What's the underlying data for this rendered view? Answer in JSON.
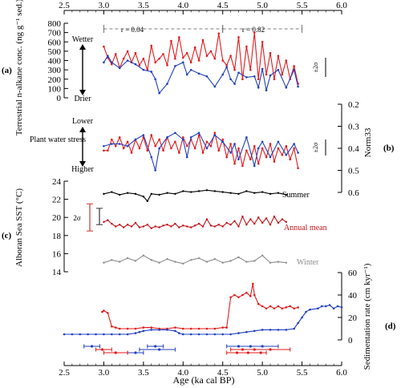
{
  "chart_data": {
    "type": "line",
    "x_axis": {
      "label": "Age (ka cal BP)",
      "range": [
        2.5,
        6.0
      ],
      "ticks": [
        "2.5",
        "3.0",
        "3.5",
        "4.0",
        "4.5",
        "5.0",
        "5.5",
        "6.0"
      ]
    },
    "correlation_labels": [
      "r = 0.04",
      "r = 0.82"
    ],
    "correlation_ranges": [
      [
        3.0,
        4.5
      ],
      [
        4.5,
        5.5
      ]
    ],
    "panels": {
      "a": {
        "label": "(a)",
        "ylabel": "Terrestrial n-alkane conc. (ng g⁻¹ sed.)",
        "ylim": [
          0,
          800
        ],
        "ticks": [
          "0",
          "100",
          "200",
          "300",
          "400",
          "500",
          "600",
          "700",
          "800"
        ],
        "arrow_top": "Wetter",
        "arrow_bottom": "Drier",
        "error_label": "±2σ",
        "series": [
          {
            "color": "#e41a1c",
            "x": [
              3.0,
              3.05,
              3.1,
              3.15,
              3.2,
              3.25,
              3.3,
              3.35,
              3.4,
              3.45,
              3.5,
              3.55,
              3.6,
              3.65,
              3.7,
              3.75,
              3.8,
              3.85,
              3.9,
              3.95,
              4.0,
              4.05,
              4.1,
              4.15,
              4.2,
              4.25,
              4.3,
              4.35,
              4.4,
              4.45,
              4.5,
              4.55,
              4.6,
              4.65,
              4.7,
              4.75,
              4.8,
              4.85,
              4.9,
              4.95,
              5.0,
              5.05,
              5.1,
              5.15,
              5.2,
              5.25,
              5.3,
              5.35,
              5.4,
              5.45
            ],
            "y": [
              550,
              430,
              360,
              470,
              320,
              420,
              500,
              380,
              480,
              350,
              420,
              300,
              560,
              380,
              420,
              470,
              350,
              610,
              420,
              650,
              430,
              480,
              380,
              540,
              400,
              620,
              450,
              500,
              420,
              690,
              400,
              350,
              450,
              300,
              650,
              200,
              550,
              300,
              700,
              200,
              600,
              250,
              480,
              200,
              450,
              250,
              400,
              200,
              340,
              150
            ]
          },
          {
            "color": "#1f3fbf",
            "x": [
              3.0,
              3.05,
              3.1,
              3.2,
              3.3,
              3.4,
              3.5,
              3.6,
              3.65,
              3.7,
              3.8,
              3.9,
              4.0,
              4.05,
              4.1,
              4.2,
              4.3,
              4.4,
              4.5,
              4.55,
              4.6,
              4.65,
              4.7,
              4.8,
              4.9,
              4.95,
              5.0,
              5.05,
              5.1,
              5.2,
              5.3,
              5.4,
              5.45
            ],
            "y": [
              380,
              450,
              380,
              320,
              400,
              360,
              300,
              280,
              200,
              50,
              150,
              340,
              380,
              250,
              300,
              260,
              230,
              120,
              250,
              330,
              200,
              150,
              270,
              220,
              230,
              110,
              310,
              80,
              240,
              300,
              110,
              300,
              120
            ]
          }
        ]
      },
      "b": {
        "label": "(b)",
        "ylabel": "Norm33",
        "ylim": [
          0.6,
          0.2
        ],
        "ticks": [
          "0.2",
          "0.3",
          "0.4",
          "0.5",
          "0.6"
        ],
        "arrow_top": "Lower",
        "arrow_middle": "Plant water stress",
        "arrow_bottom": "Higher",
        "error_label": "±2σ",
        "series": [
          {
            "color": "#e41a1c",
            "x": [
              3.0,
              3.05,
              3.1,
              3.15,
              3.2,
              3.25,
              3.3,
              3.35,
              3.4,
              3.45,
              3.5,
              3.55,
              3.6,
              3.65,
              3.7,
              3.75,
              3.8,
              3.85,
              3.9,
              3.95,
              4.0,
              4.05,
              4.1,
              4.15,
              4.2,
              4.25,
              4.3,
              4.35,
              4.4,
              4.45,
              4.5,
              4.55,
              4.6,
              4.65,
              4.7,
              4.75,
              4.8,
              4.85,
              4.9,
              4.95,
              5.0,
              5.05,
              5.1,
              5.15,
              5.2,
              5.25,
              5.3,
              5.35,
              5.4,
              5.45
            ],
            "y": [
              0.41,
              0.41,
              0.36,
              0.39,
              0.35,
              0.4,
              0.37,
              0.42,
              0.36,
              0.4,
              0.35,
              0.41,
              0.34,
              0.39,
              0.36,
              0.41,
              0.35,
              0.4,
              0.37,
              0.42,
              0.35,
              0.39,
              0.36,
              0.4,
              0.34,
              0.42,
              0.37,
              0.39,
              0.33,
              0.41,
              0.36,
              0.44,
              0.38,
              0.47,
              0.4,
              0.48,
              0.41,
              0.45,
              0.39,
              0.47,
              0.4,
              0.44,
              0.38,
              0.46,
              0.4,
              0.43,
              0.39,
              0.45,
              0.4,
              0.49
            ]
          },
          {
            "color": "#1f3fbf",
            "x": [
              3.0,
              3.1,
              3.2,
              3.3,
              3.4,
              3.5,
              3.6,
              3.65,
              3.7,
              3.8,
              3.9,
              4.0,
              4.05,
              4.1,
              4.2,
              4.3,
              4.4,
              4.5,
              4.6,
              4.65,
              4.7,
              4.8,
              4.9,
              4.95,
              5.0,
              5.1,
              5.2,
              5.3,
              5.4,
              5.45
            ],
            "y": [
              0.39,
              0.38,
              0.38,
              0.39,
              0.36,
              0.34,
              0.44,
              0.5,
              0.4,
              0.35,
              0.33,
              0.36,
              0.44,
              0.35,
              0.33,
              0.4,
              0.34,
              0.37,
              0.42,
              0.38,
              0.45,
              0.35,
              0.48,
              0.4,
              0.37,
              0.44,
              0.37,
              0.43,
              0.38,
              0.42
            ]
          }
        ]
      },
      "c": {
        "label": "(c)",
        "ylabel": "Alboran Sea SST (°C)",
        "ylim": [
          14,
          24
        ],
        "ticks": [
          "14",
          "16",
          "18",
          "20",
          "22",
          "24"
        ],
        "error_label": "2σ",
        "series": [
          {
            "name": "Summer",
            "color": "#000000",
            "x": [
              3.0,
              3.1,
              3.2,
              3.3,
              3.4,
              3.5,
              3.55,
              3.6,
              3.7,
              3.8,
              3.9,
              4.0,
              4.1,
              4.2,
              4.3,
              4.4,
              4.5,
              4.6,
              4.7,
              4.8,
              4.9,
              5.0,
              5.1,
              5.2,
              5.3
            ],
            "y": [
              22.6,
              22.8,
              22.5,
              22.7,
              22.6,
              22.3,
              21.8,
              22.6,
              22.5,
              22.7,
              22.6,
              22.9,
              22.8,
              22.9,
              23.0,
              22.9,
              22.8,
              22.7,
              22.6,
              22.9,
              22.7,
              22.8,
              22.6,
              22.7,
              22.5
            ]
          },
          {
            "name": "Annual mean",
            "color": "#c0141a",
            "x": [
              3.0,
              3.05,
              3.1,
              3.15,
              3.2,
              3.25,
              3.3,
              3.35,
              3.4,
              3.45,
              3.5,
              3.55,
              3.6,
              3.65,
              3.7,
              3.75,
              3.8,
              3.85,
              3.9,
              3.95,
              4.0,
              4.05,
              4.1,
              4.15,
              4.2,
              4.25,
              4.3,
              4.35,
              4.4,
              4.45,
              4.5,
              4.55,
              4.6,
              4.65,
              4.7,
              4.75,
              4.8,
              4.85,
              4.9,
              4.95,
              5.0,
              5.05,
              5.1,
              5.15,
              5.2,
              5.25,
              5.3
            ],
            "y": [
              19.5,
              19.7,
              19.3,
              19.0,
              19.2,
              18.9,
              19.2,
              19.0,
              19.4,
              18.9,
              19.0,
              19.2,
              18.8,
              19.0,
              18.9,
              19.1,
              19.2,
              19.0,
              19.3,
              18.9,
              19.1,
              19.0,
              18.9,
              19.1,
              19.3,
              19.0,
              19.8,
              19.1,
              19.0,
              19.2,
              19.0,
              19.4,
              19.2,
              19.6,
              19.0,
              20.1,
              19.2,
              19.8,
              19.3,
              20.0,
              19.4,
              19.9,
              19.2,
              20.1,
              19.4,
              19.8,
              19.5
            ]
          },
          {
            "name": "Winter",
            "color": "#8c8c8c",
            "x": [
              3.0,
              3.1,
              3.2,
              3.3,
              3.4,
              3.5,
              3.6,
              3.7,
              3.8,
              3.9,
              4.0,
              4.1,
              4.2,
              4.3,
              4.4,
              4.5,
              4.6,
              4.7,
              4.8,
              4.9,
              5.0,
              5.1,
              5.2,
              5.3
            ],
            "y": [
              15.0,
              15.3,
              15.1,
              15.5,
              15.2,
              15.8,
              15.3,
              15.0,
              15.4,
              15.1,
              14.9,
              15.3,
              15.5,
              15.1,
              15.4,
              15.0,
              15.2,
              15.6,
              15.1,
              15.2,
              15.8,
              15.0,
              15.1,
              15.0
            ]
          }
        ]
      },
      "d": {
        "label": "(d)",
        "ylabel": "Sedimentation rate (cm kyr⁻¹)",
        "ylim": [
          0,
          60
        ],
        "ticks": [
          "0",
          "20",
          "40",
          "60"
        ],
        "series": [
          {
            "color": "#e41a1c",
            "x": [
              2.98,
              3.0,
              3.05,
              3.1,
              3.15,
              3.2,
              3.3,
              3.4,
              3.5,
              3.6,
              3.7,
              3.8,
              3.9,
              4.0,
              4.1,
              4.2,
              4.3,
              4.4,
              4.5,
              4.55,
              4.6,
              4.65,
              4.7,
              4.75,
              4.8,
              4.85,
              4.88,
              4.9,
              4.95,
              5.0,
              5.05,
              5.1,
              5.15,
              5.2,
              5.25,
              5.3,
              5.35,
              5.4,
              5.45
            ],
            "y": [
              25,
              26,
              24,
              12,
              11,
              10,
              10,
              10,
              11,
              11,
              10,
              10,
              11,
              10,
              10,
              10,
              10,
              10,
              11,
              11,
              38,
              40,
              38,
              40,
              42,
              39,
              50,
              40,
              32,
              30,
              28,
              30,
              28,
              30,
              28,
              29,
              30,
              28,
              29
            ]
          },
          {
            "color": "#1f3fbf",
            "x": [
              2.5,
              2.6,
              2.7,
              2.8,
              2.9,
              3.0,
              3.1,
              3.2,
              3.3,
              3.4,
              3.45,
              3.5,
              3.6,
              3.7,
              3.8,
              3.9,
              3.95,
              4.0,
              4.1,
              4.2,
              4.3,
              4.4,
              4.5,
              4.6,
              4.7,
              4.8,
              4.9,
              5.0,
              5.1,
              5.2,
              5.3,
              5.4,
              5.45,
              5.5,
              5.55,
              5.6,
              5.7,
              5.75,
              5.8,
              5.85,
              5.9,
              5.95,
              6.0
            ],
            "y": [
              5,
              5,
              5,
              5,
              5,
              5,
              5,
              5,
              5,
              6,
              7,
              8,
              9,
              9,
              9,
              8,
              6,
              5,
              5,
              5,
              5,
              5,
              5,
              5,
              6,
              7,
              8,
              9,
              9,
              9,
              9,
              10,
              15,
              20,
              25,
              27,
              28,
              30,
              30,
              31,
              28,
              30,
              29
            ]
          }
        ],
        "age_bars": [
          {
            "color": "#1f3fbf",
            "row": 1,
            "min": 2.75,
            "max": 2.95,
            "pts": [
              2.85
            ]
          },
          {
            "color": "#e41a1c",
            "row": 2,
            "min": 2.9,
            "max": 3.1,
            "pts": [
              2.98
            ]
          },
          {
            "color": "#1f3fbf",
            "row": 1,
            "min": 3.55,
            "max": 3.75,
            "pts": [
              3.65
            ]
          },
          {
            "color": "#1f3fbf",
            "row": 2,
            "min": 3.45,
            "max": 3.9,
            "pts": [
              3.7
            ]
          },
          {
            "color": "#1f3fbf",
            "row": 3,
            "min": 3.3,
            "max": 3.5,
            "pts": [
              3.4
            ]
          },
          {
            "color": "#e41a1c",
            "row": 3,
            "min": 3.0,
            "max": 3.3,
            "pts": [
              3.15
            ]
          },
          {
            "color": "#1f3fbf",
            "row": 1,
            "min": 4.55,
            "max": 5.2,
            "pts": [
              4.7,
              4.85,
              5.0
            ]
          },
          {
            "color": "#e41a1c",
            "row": 2,
            "min": 4.6,
            "max": 5.35,
            "pts": [
              4.75,
              4.9,
              5.1
            ]
          },
          {
            "color": "#e41a1c",
            "row": 3,
            "min": 4.55,
            "max": 5.05,
            "pts": [
              4.68,
              4.82,
              4.98
            ]
          }
        ]
      }
    }
  }
}
